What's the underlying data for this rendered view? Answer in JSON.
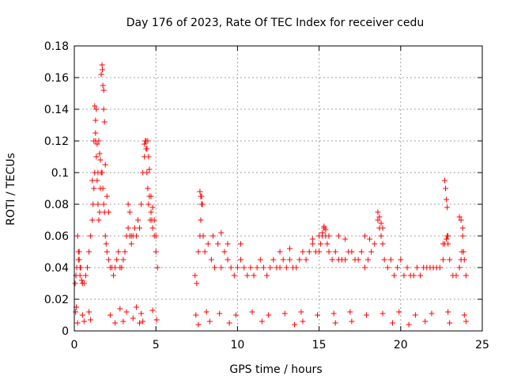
{
  "chart_data": {
    "type": "scatter",
    "title": "Day 176 of 2023, Rate Of TEC Index for receiver cedu",
    "xlabel": "GPS time / hours",
    "ylabel": "ROTI / TECUs",
    "xlim": [
      0,
      25
    ],
    "ylim": [
      0,
      0.18
    ],
    "xticks": [
      "0",
      "5",
      "10",
      "15",
      "20",
      "25"
    ],
    "yticks": [
      "0",
      "0.02",
      "0.04",
      "0.06",
      "0.08",
      "0.1",
      "0.12",
      "0.14",
      "0.16",
      "0.18"
    ],
    "grid": true,
    "marker": "+",
    "color": "#ff0000",
    "series": [
      {
        "x": [
          0.05,
          0.1,
          0.15,
          0.2,
          0.25,
          0.3,
          0.35,
          0.4,
          0.45,
          0.5,
          0.6,
          0.7,
          0.8,
          0.9,
          1.0,
          1.1,
          1.15,
          1.2,
          1.25,
          1.3,
          1.35,
          1.4,
          1.45,
          1.5,
          1.55,
          1.6,
          1.65,
          1.7,
          1.75,
          1.8,
          1.85,
          1.9,
          1.95,
          2.0,
          2.1,
          2.2,
          2.3,
          2.4,
          2.5,
          2.6,
          2.7,
          2.8,
          2.9,
          3.0,
          3.1,
          3.2,
          3.3,
          3.4,
          3.5,
          3.6,
          3.7,
          3.8,
          3.9,
          4.0,
          4.1,
          4.2,
          4.3,
          4.35,
          4.4,
          4.45,
          4.5,
          4.55,
          4.6,
          4.65,
          4.7,
          4.75,
          4.8,
          4.9,
          5.0,
          5.1,
          1.25,
          1.3,
          1.3,
          1.35,
          1.5,
          1.6,
          1.65,
          1.7,
          1.72,
          1.75,
          1.8,
          1.8,
          1.85,
          1.9,
          1.4,
          1.45,
          1.55,
          1.2,
          1.1,
          2.0,
          2.1,
          0.25,
          0.3,
          0.35,
          3.3,
          3.4,
          3.5,
          4.3,
          4.4,
          4.45,
          4.5,
          4.55,
          4.6,
          4.7,
          4.8,
          4.9,
          5.0,
          7.4,
          7.5,
          7.6,
          7.7,
          7.75,
          7.8,
          7.85,
          7.9,
          8.0,
          8.2,
          8.4,
          8.6,
          8.8,
          9.0,
          9.2,
          9.4,
          9.6,
          9.8,
          10.0,
          10.2,
          10.4,
          10.6,
          10.8,
          11.0,
          11.2,
          11.4,
          11.6,
          11.8,
          12.0,
          12.2,
          12.4,
          12.6,
          12.8,
          13.0,
          13.2,
          13.4,
          13.6,
          13.8,
          14.0,
          14.2,
          14.4,
          14.6,
          14.8,
          15.0,
          15.1,
          15.2,
          15.3,
          15.4,
          15.5,
          15.6,
          15.8,
          16.0,
          16.2,
          16.4,
          16.6,
          16.8,
          17.0,
          17.2,
          17.4,
          17.6,
          17.8,
          18.0,
          18.2,
          18.4,
          18.6,
          18.7,
          18.8,
          18.9,
          19.0,
          19.2,
          19.4,
          19.6,
          19.8,
          20.0,
          20.2,
          20.4,
          20.6,
          20.8,
          21.0,
          21.2,
          21.4,
          21.6,
          21.8,
          22.0,
          22.2,
          22.4,
          22.6,
          22.7,
          22.8,
          22.85,
          22.9,
          23.0,
          23.2,
          23.4,
          23.6,
          23.7,
          23.75,
          23.8,
          23.9,
          24.0,
          7.7,
          7.75,
          7.8,
          8.5,
          9.0,
          9.4,
          10.2,
          12.6,
          13.2,
          14.6,
          15.0,
          15.2,
          15.3,
          15.4,
          15.6,
          16.2,
          16.6,
          17.8,
          18.1,
          18.6,
          18.7,
          18.8,
          18.9,
          22.6,
          22.7,
          22.75,
          22.8,
          22.85,
          22.9,
          23.6,
          23.7,
          23.8,
          23.85,
          0.2,
          0.6,
          1.0,
          2.5,
          3.0,
          3.6,
          4.0,
          4.2,
          5.05,
          7.6,
          8.3,
          9.5,
          11.5,
          13.5,
          14.0,
          16.0,
          17.0,
          19.5,
          20.5,
          21.5,
          23.0,
          24.0,
          0.08,
          0.12,
          0.5,
          0.9,
          2.2,
          2.8,
          3.2,
          3.8,
          4.1,
          4.8,
          7.45,
          8.1,
          8.9,
          9.9,
          10.9,
          11.9,
          12.9,
          13.9,
          14.9,
          15.9,
          16.9,
          17.9,
          18.9,
          19.9,
          20.9,
          21.9,
          22.9,
          23.9
        ],
        "y": [
          0.03,
          0.035,
          0.04,
          0.06,
          0.05,
          0.045,
          0.035,
          0.04,
          0.032,
          0.03,
          0.03,
          0.035,
          0.04,
          0.05,
          0.06,
          0.07,
          0.08,
          0.09,
          0.1,
          0.12,
          0.11,
          0.095,
          0.08,
          0.07,
          0.075,
          0.09,
          0.1,
          0.1,
          0.09,
          0.08,
          0.075,
          0.06,
          0.055,
          0.05,
          0.045,
          0.04,
          0.04,
          0.035,
          0.04,
          0.045,
          0.05,
          0.04,
          0.04,
          0.045,
          0.05,
          0.06,
          0.065,
          0.06,
          0.055,
          0.06,
          0.065,
          0.06,
          0.07,
          0.065,
          0.08,
          0.1,
          0.11,
          0.12,
          0.115,
          0.1,
          0.09,
          0.08,
          0.085,
          0.07,
          0.075,
          0.07,
          0.065,
          0.06,
          0.05,
          0.04,
          0.142,
          0.133,
          0.125,
          0.14,
          0.12,
          0.108,
          0.162,
          0.168,
          0.165,
          0.155,
          0.152,
          0.14,
          0.132,
          0.105,
          0.118,
          0.1,
          0.112,
          0.12,
          0.095,
          0.085,
          0.075,
          0.045,
          0.05,
          0.04,
          0.08,
          0.075,
          0.06,
          0.118,
          0.12,
          0.115,
          0.12,
          0.11,
          0.102,
          0.085,
          0.078,
          0.07,
          0.06,
          0.035,
          0.03,
          0.05,
          0.06,
          0.07,
          0.085,
          0.08,
          0.06,
          0.05,
          0.055,
          0.045,
          0.04,
          0.055,
          0.04,
          0.05,
          0.045,
          0.04,
          0.035,
          0.04,
          0.045,
          0.04,
          0.035,
          0.04,
          0.035,
          0.04,
          0.045,
          0.04,
          0.035,
          0.04,
          0.045,
          0.04,
          0.04,
          0.045,
          0.04,
          0.045,
          0.04,
          0.04,
          0.045,
          0.05,
          0.045,
          0.05,
          0.055,
          0.05,
          0.05,
          0.055,
          0.06,
          0.065,
          0.06,
          0.055,
          0.05,
          0.045,
          0.05,
          0.045,
          0.045,
          0.045,
          0.05,
          0.05,
          0.045,
          0.045,
          0.05,
          0.04,
          0.045,
          0.05,
          0.055,
          0.07,
          0.065,
          0.06,
          0.055,
          0.045,
          0.04,
          0.045,
          0.035,
          0.04,
          0.045,
          0.035,
          0.04,
          0.035,
          0.035,
          0.04,
          0.035,
          0.04,
          0.04,
          0.04,
          0.04,
          0.04,
          0.04,
          0.045,
          0.055,
          0.058,
          0.06,
          0.055,
          0.045,
          0.035,
          0.035,
          0.04,
          0.045,
          0.05,
          0.06,
          0.045,
          0.035,
          0.088,
          0.085,
          0.08,
          0.06,
          0.062,
          0.055,
          0.055,
          0.05,
          0.052,
          0.058,
          0.06,
          0.062,
          0.066,
          0.064,
          0.06,
          0.06,
          0.058,
          0.06,
          0.058,
          0.075,
          0.072,
          0.068,
          0.065,
          0.055,
          0.095,
          0.09,
          0.083,
          0.078,
          0.06,
          0.072,
          0.07,
          0.065,
          0.05,
          0.005,
          0.006,
          0.007,
          0.005,
          0.006,
          0.008,
          0.005,
          0.006,
          0.007,
          0.004,
          0.006,
          0.005,
          0.006,
          0.004,
          0.006,
          0.005,
          0.006,
          0.005,
          0.004,
          0.006,
          0.005,
          0.006,
          0.012,
          0.015,
          0.01,
          0.012,
          0.01,
          0.014,
          0.012,
          0.015,
          0.011,
          0.013,
          0.01,
          0.012,
          0.011,
          0.01,
          0.012,
          0.01,
          0.011,
          0.012,
          0.01,
          0.011,
          0.012,
          0.01,
          0.011,
          0.012,
          0.01,
          0.011,
          0.012,
          0.01
        ]
      }
    ]
  }
}
